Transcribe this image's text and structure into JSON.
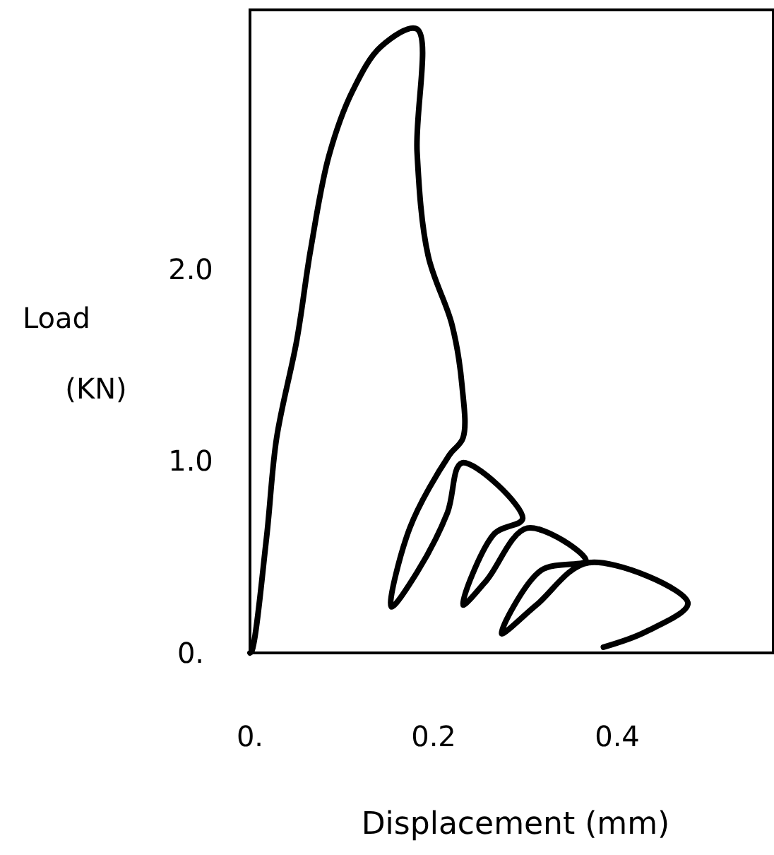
{
  "chart_data": {
    "type": "line",
    "xlabel": "Displacement (mm)",
    "ylabel": "Load (KN)",
    "xlim": [
      0,
      0.57
    ],
    "ylim": [
      0,
      3.35
    ],
    "xticks": [
      {
        "value": 0,
        "label": "0."
      },
      0.2,
      0.4
    ],
    "yticks": [
      {
        "value": 0,
        "label": "0."
      },
      {
        "value": 1,
        "label": "1.0"
      },
      {
        "value": 2,
        "label": "2.0"
      }
    ],
    "grid": false,
    "marker": "none",
    "line_style": "solid",
    "series": [
      {
        "color": "#000000",
        "x": [
          0,
          0.002,
          0.018,
          0.029,
          0.051,
          0.066,
          0.086,
          0.112,
          0.143,
          0.182,
          0.182,
          0.194,
          0.22,
          0.231,
          0.232,
          0.217,
          0.174,
          0.154,
          0.182,
          0.215,
          0.231,
          0.297,
          0.266,
          0.232,
          0.258,
          0.302,
          0.366,
          0.317,
          0.274,
          0.312,
          0.369,
          0.477,
          0.431,
          0.385
        ],
        "values": [
          0,
          0.01,
          0.6,
          1.12,
          1.63,
          2.1,
          2.59,
          2.93,
          3.16,
          3.25,
          2.61,
          2.07,
          1.71,
          1.39,
          1.12,
          1.03,
          0.65,
          0.24,
          0.42,
          0.73,
          0.99,
          0.7,
          0.62,
          0.25,
          0.38,
          0.65,
          0.48,
          0.43,
          0.1,
          0.25,
          0.47,
          0.26,
          0.11,
          0.03
        ]
      }
    ]
  }
}
